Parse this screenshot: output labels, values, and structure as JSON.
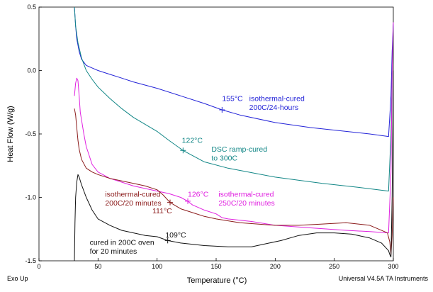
{
  "chart_data": {
    "type": "line",
    "xlabel": "Temperature (°C)",
    "ylabel": "Heat Flow (W/g)",
    "xlim": [
      0,
      300
    ],
    "ylim": [
      -1.5,
      0.5
    ],
    "xticks": [
      0,
      50,
      100,
      150,
      200,
      250,
      300
    ],
    "xtick_labels": [
      "0",
      "50",
      "100",
      "150",
      "200",
      "250",
      "300"
    ],
    "yticks": [
      0.5,
      0.0,
      -0.5,
      -1.0,
      -1.5
    ],
    "ytick_labels": [
      "0.5",
      "0.0",
      "-0.5",
      "-1.0",
      "-1.5"
    ],
    "grid": false,
    "footer_left": "Exo Up",
    "footer_right": "Universal V4.5A TA Instruments",
    "series": [
      {
        "id": "iso-24h",
        "color": "#2323d8",
        "x": [
          30,
          31,
          32,
          34,
          36,
          40,
          45,
          50,
          60,
          70,
          80,
          100,
          120,
          140,
          155,
          170,
          200,
          230,
          260,
          280,
          296,
          298,
          299,
          300
        ],
        "y": [
          0.5,
          0.35,
          0.25,
          0.15,
          0.09,
          0.04,
          0.02,
          0.0,
          -0.03,
          -0.06,
          -0.09,
          -0.14,
          -0.2,
          -0.26,
          -0.31,
          -0.35,
          -0.41,
          -0.45,
          -0.48,
          -0.5,
          -0.52,
          -0.2,
          0.15,
          0.38
        ]
      },
      {
        "id": "ramp-300",
        "color": "#118686",
        "x": [
          30,
          31,
          33,
          36,
          40,
          45,
          50,
          60,
          70,
          80,
          100,
          110,
          122,
          140,
          160,
          200,
          240,
          270,
          296,
          298,
          299,
          300
        ],
        "y": [
          0.5,
          0.35,
          0.22,
          0.1,
          0.0,
          -0.07,
          -0.13,
          -0.22,
          -0.3,
          -0.37,
          -0.48,
          -0.55,
          -0.63,
          -0.72,
          -0.77,
          -0.84,
          -0.89,
          -0.92,
          -0.95,
          -0.5,
          0.0,
          0.38
        ]
      },
      {
        "id": "iso-250",
        "color": "#e020e0",
        "x": [
          30,
          31,
          32,
          33,
          34,
          35,
          38,
          40,
          45,
          50,
          60,
          70,
          80,
          90,
          100,
          110,
          120,
          126,
          130,
          140,
          150,
          155,
          160,
          180,
          200,
          230,
          260,
          280,
          296,
          298,
          299,
          300
        ],
        "y": [
          -0.2,
          -0.1,
          -0.06,
          -0.08,
          -0.2,
          -0.33,
          -0.5,
          -0.6,
          -0.74,
          -0.8,
          -0.85,
          -0.88,
          -0.91,
          -0.93,
          -0.95,
          -0.97,
          -1.0,
          -1.03,
          -1.06,
          -1.1,
          -1.13,
          -1.16,
          -1.17,
          -1.19,
          -1.22,
          -1.24,
          -1.26,
          -1.27,
          -1.28,
          -0.8,
          0.0,
          0.38
        ]
      },
      {
        "id": "iso-200c-20",
        "color": "#8a1a1a",
        "x": [
          30,
          31,
          32,
          33,
          34,
          36,
          40,
          45,
          50,
          60,
          70,
          80,
          90,
          100,
          105,
          111,
          120,
          130,
          140,
          150,
          170,
          200,
          220,
          240,
          260,
          280,
          295,
          297,
          298,
          299,
          300
        ],
        "y": [
          -0.3,
          -0.35,
          -0.45,
          -0.55,
          -0.62,
          -0.7,
          -0.77,
          -0.8,
          -0.82,
          -0.85,
          -0.87,
          -0.89,
          -0.91,
          -0.94,
          -0.98,
          -1.04,
          -1.09,
          -1.12,
          -1.15,
          -1.17,
          -1.2,
          -1.22,
          -1.22,
          -1.21,
          -1.2,
          -1.22,
          -1.28,
          -1.35,
          -1.45,
          -1.3,
          -1.0
        ]
      },
      {
        "id": "oven-200",
        "color": "#111111",
        "x": [
          30,
          30.5,
          31,
          32,
          33,
          34,
          36,
          40,
          45,
          50,
          60,
          70,
          80,
          90,
          100,
          109,
          120,
          140,
          160,
          180,
          195,
          205,
          220,
          235,
          250,
          265,
          280,
          290,
          296,
          297,
          298,
          299,
          300
        ],
        "y": [
          -1.5,
          -1.2,
          -1.0,
          -0.88,
          -0.82,
          -0.84,
          -0.9,
          -1.0,
          -1.1,
          -1.17,
          -1.22,
          -1.26,
          -1.28,
          -1.3,
          -1.31,
          -1.34,
          -1.36,
          -1.38,
          -1.39,
          -1.39,
          -1.36,
          -1.34,
          -1.3,
          -1.28,
          -1.28,
          -1.29,
          -1.32,
          -1.36,
          -1.42,
          -1.45,
          -1.47,
          -1.0,
          0.0
        ]
      }
    ],
    "markers": [
      {
        "x": 155,
        "y": -0.31,
        "series": "iso-24h"
      },
      {
        "x": 122,
        "y": -0.63,
        "series": "ramp-300"
      },
      {
        "x": 126,
        "y": -1.03,
        "series": "iso-250"
      },
      {
        "x": 111,
        "y": -1.04,
        "series": "iso-200c-20"
      },
      {
        "x": 109,
        "y": -1.34,
        "series": "oven-200"
      }
    ],
    "annotations": [
      {
        "id": "t-155",
        "text": "155°C",
        "x": 155,
        "y": -0.24,
        "color": "#2323d8"
      },
      {
        "id": "lbl-iso24-1",
        "text": "isothermal-cured",
        "x": 178,
        "y": -0.24,
        "color": "#2323d8"
      },
      {
        "id": "lbl-iso24-2",
        "text": "200C/24-hours",
        "x": 178,
        "y": -0.31,
        "color": "#2323d8"
      },
      {
        "id": "t-122",
        "text": "122°C",
        "x": 121,
        "y": -0.57,
        "color": "#118686"
      },
      {
        "id": "lbl-ramp-1",
        "text": "DSC ramp-cured",
        "x": 146,
        "y": -0.64,
        "color": "#118686"
      },
      {
        "id": "lbl-ramp-2",
        "text": "to 300C",
        "x": 146,
        "y": -0.71,
        "color": "#118686"
      },
      {
        "id": "t-126",
        "text": "126°C",
        "x": 126,
        "y": -0.995,
        "color": "#e020e0"
      },
      {
        "id": "lbl-iso250-1",
        "text": "isothermal-cured",
        "x": 152,
        "y": -0.995,
        "color": "#e020e0"
      },
      {
        "id": "lbl-iso250-2",
        "text": "250C/20 minutes",
        "x": 152,
        "y": -1.065,
        "color": "#e020e0"
      },
      {
        "id": "lbl-iso200-1",
        "text": "isothermal-cured",
        "x": 56,
        "y": -0.995,
        "color": "#8a1a1a"
      },
      {
        "id": "lbl-iso200-2",
        "text": "200C/20 minutes",
        "x": 56,
        "y": -1.065,
        "color": "#8a1a1a"
      },
      {
        "id": "t-111",
        "text": "111°C",
        "x": 96,
        "y": -1.125,
        "color": "#8a1a1a"
      },
      {
        "id": "t-109",
        "text": "109°C",
        "x": 107,
        "y": -1.315,
        "color": "#111111"
      },
      {
        "id": "lbl-oven-1",
        "text": "cured in 200C oven",
        "x": 43,
        "y": -1.375,
        "color": "#111111"
      },
      {
        "id": "lbl-oven-2",
        "text": "for 20 minutes",
        "x": 43,
        "y": -1.445,
        "color": "#111111"
      }
    ]
  }
}
